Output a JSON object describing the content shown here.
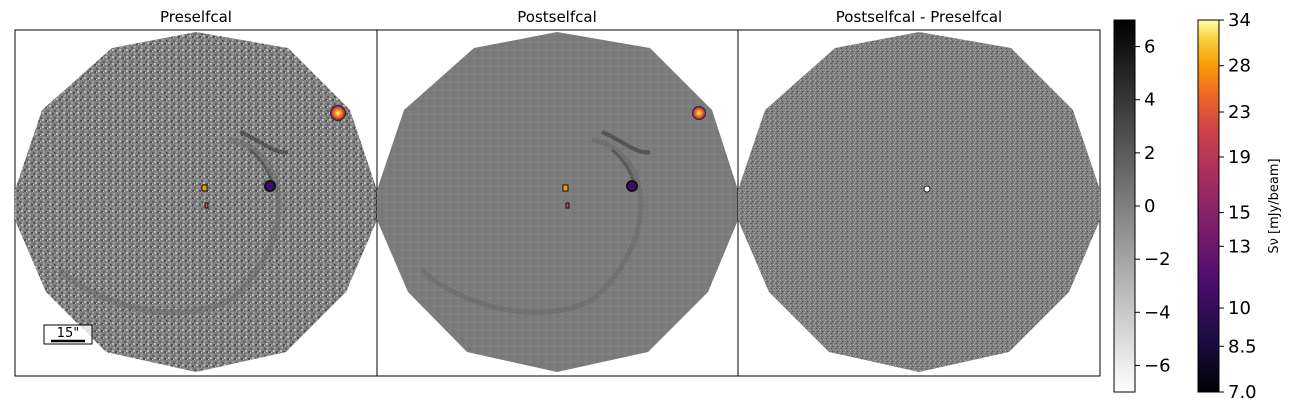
{
  "chart_data": {
    "type": "heatmap",
    "panels": [
      {
        "title": "Preselfcal",
        "colormap": "gray + inferno",
        "scalebar_label": "15\""
      },
      {
        "title": "Postselfcal",
        "colormap": "gray + inferno"
      },
      {
        "title": "Postselfcal - Preselfcal",
        "colormap": "gray"
      }
    ],
    "colorbars": [
      {
        "colormap": "gray_r",
        "range": [
          -7,
          7
        ],
        "ticks": [
          6,
          4,
          2,
          0,
          -2,
          -4,
          -6
        ],
        "tick_labels": [
          "6",
          "4",
          "2",
          "0",
          "−2",
          "−4",
          "−6"
        ]
      },
      {
        "colormap": "inferno",
        "scale": "log",
        "range": [
          7.0,
          34
        ],
        "ticks": [
          34,
          28,
          23,
          19,
          15,
          13,
          10,
          8.5,
          7.0
        ],
        "tick_labels": [
          "34",
          "28",
          "23",
          "19",
          "15",
          "13",
          "10",
          "8.5",
          "7.0"
        ],
        "label": "Sν [mJy/beam]"
      }
    ],
    "colors": {
      "background_gray": "#7b7b7b",
      "bright_source": "#fcb52a",
      "dark_source": "#3b0f70"
    }
  }
}
